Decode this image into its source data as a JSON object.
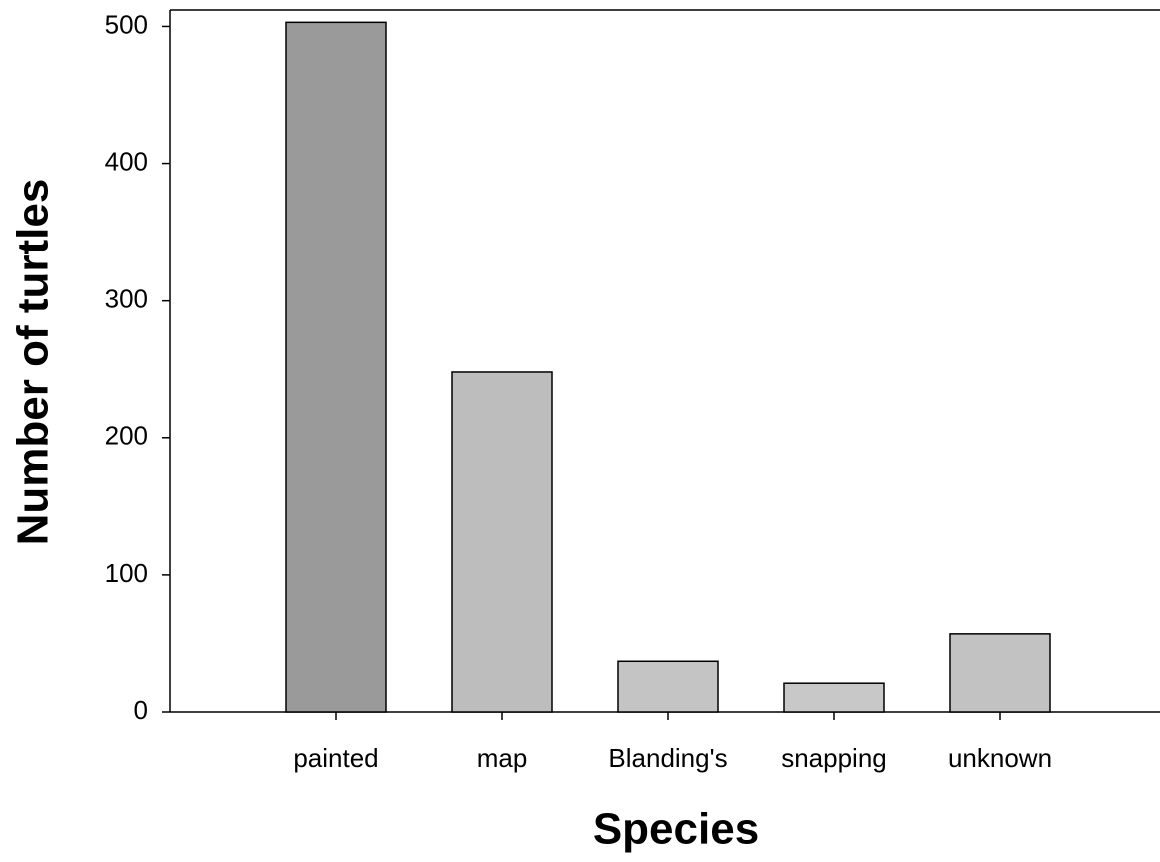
{
  "chart_data": {
    "type": "bar",
    "x_label": "Species",
    "y_label": "Number of turtles",
    "categories": [
      "painted",
      "map",
      "Blanding's",
      "snapping",
      "unknown"
    ],
    "values": [
      503,
      248,
      37,
      21,
      57
    ],
    "colors": [
      "#9a9a9a",
      "#bdbdbd",
      "#c4c4c4",
      "#c8c8c8",
      "#c2c2c2"
    ],
    "ylim": [
      0,
      512
    ],
    "yticks": [
      0,
      100,
      200,
      300,
      400,
      500
    ],
    "grid": false
  }
}
